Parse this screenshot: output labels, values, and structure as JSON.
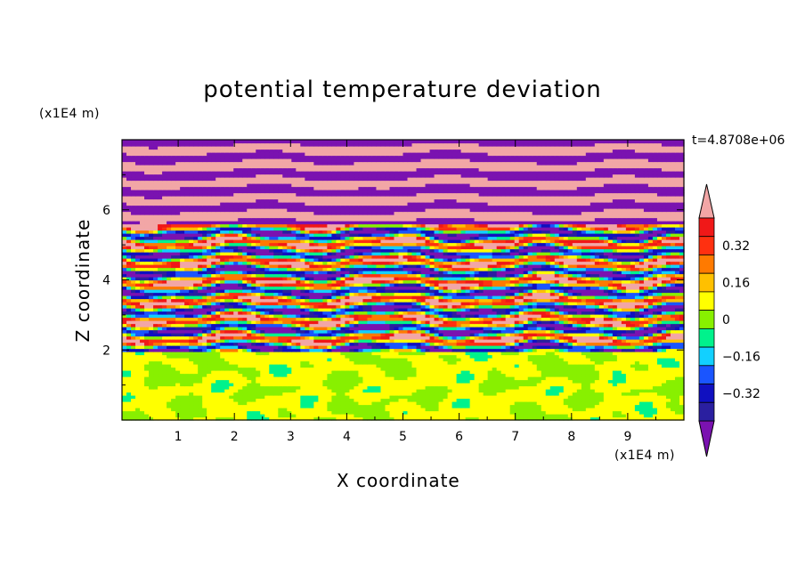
{
  "chart_data": {
    "type": "heatmap",
    "title": "potential temperature deviation",
    "time_label": "t=4.8708e+06",
    "xlabel": "X coordinate",
    "ylabel": "Z coordinate",
    "x_unit": "(x1E4 m)",
    "y_unit": "(x1E4 m)",
    "xlim": [
      0,
      10
    ],
    "ylim": [
      0,
      8
    ],
    "x_ticks": [
      1,
      2,
      3,
      4,
      5,
      6,
      7,
      8,
      9
    ],
    "y_ticks": [
      2,
      4,
      6
    ],
    "colorbar": {
      "levels": [
        -0.48,
        -0.4,
        -0.32,
        -0.24,
        -0.16,
        -0.08,
        0,
        0.08,
        0.16,
        0.24,
        0.32,
        0.4,
        0.48
      ],
      "tick_labels": [
        "0.32",
        "0.16",
        "0",
        "−0.16",
        "−0.32"
      ],
      "tick_values": [
        0.32,
        0.16,
        0,
        -0.16,
        -0.32
      ],
      "colors": [
        "#7a12b0",
        "#2a1fa0",
        "#1010c0",
        "#1a55ff",
        "#12d0ff",
        "#00f28c",
        "#88f000",
        "#ffff00",
        "#ffc000",
        "#ff7a00",
        "#ff3010",
        "#f01818",
        "#f2a6a6"
      ],
      "extend": "both"
    },
    "field_description_bands": [
      {
        "z_from": 0,
        "z_to": 2,
        "pattern": "near-zero mixed green / cyan-green"
      },
      {
        "z_from": 2,
        "z_to": 5.5,
        "pattern": "turbulent alternating layers, full range"
      },
      {
        "z_from": 5.5,
        "z_to": 8,
        "pattern": "alternating strong positive (pink) and strong negative (purple) stripes"
      }
    ]
  }
}
